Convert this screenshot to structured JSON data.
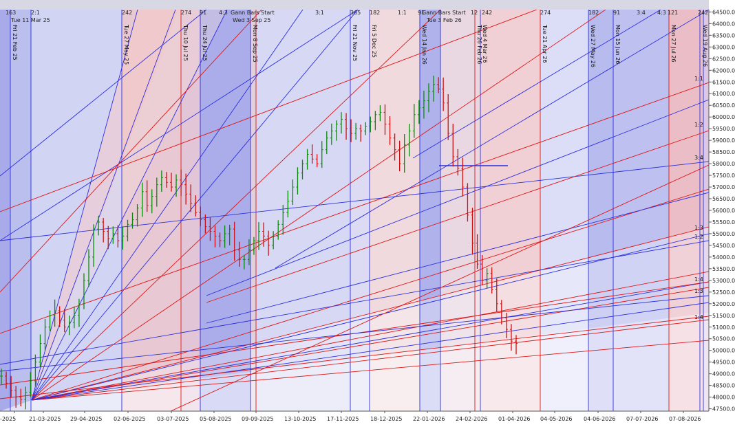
{
  "chart_data": {
    "type": "candlestick",
    "x_tick_labels": [
      "-2025",
      "21-03-2025",
      "29-04-2025",
      "02-06-2025",
      "03-07-2025",
      "05-08-2025",
      "09-09-2025",
      "13-10-2025",
      "17-11-2025",
      "18-12-2025",
      "22-01-2026",
      "24-02-2026",
      "01-04-2026",
      "04-05-2026",
      "04-06-2026",
      "07-07-2026",
      "07-08-2026"
    ],
    "y_tick_labels": [
      "64500.00",
      "64000.00",
      "63500.00",
      "63000.00",
      "62500.00",
      "62000.00",
      "61500.00",
      "61000.00",
      "60500.00",
      "60000.00",
      "59500.00",
      "59000.00",
      "58500.00",
      "58000.00",
      "57500.00",
      "57000.00",
      "56500.00",
      "56000.00",
      "55500.00",
      "55000.00",
      "54500.00",
      "54000.00",
      "53500.00",
      "53000.00",
      "52500.00",
      "52000.00",
      "51500.00",
      "51000.00",
      "50500.00",
      "50000.00",
      "49500.00",
      "49000.00",
      "48500.00",
      "48000.00",
      "47500.00"
    ],
    "ylim": [
      47400,
      64600
    ],
    "top_cycle_labels": [
      "163",
      "2:1",
      "242",
      "274",
      "91",
      "4:3",
      "Gann Bars Start",
      "3:1",
      "365",
      "182",
      "1:1",
      "91",
      "Gann Bars Start",
      "12",
      "242",
      "274",
      "182",
      "91",
      "3:4",
      "4:3",
      "121",
      "242"
    ],
    "gann_start_labels": [
      "Tue 11 Mar 25",
      "Wed 3 Sep 25",
      "Tue 3 Feb 26"
    ],
    "vertical_line_labels": [
      {
        "label": "Fri 21 Feb 25",
        "color": "blue"
      },
      {
        "label": "Tue 27 May 25",
        "color": "blue"
      },
      {
        "label": "Thu 10 Jul 25",
        "color": "red"
      },
      {
        "label": "Thu 24 Jul 25",
        "color": "blue"
      },
      {
        "label": "Mon 8 Sep 25",
        "color": "red"
      },
      {
        "label": "Fri 21 Nov 25",
        "color": "blue"
      },
      {
        "label": "Fri 5 Dec 25",
        "color": "blue"
      },
      {
        "label": "Wed 14 Jan 26",
        "color": "blue"
      },
      {
        "label": "Thu 26 Feb 26",
        "color": "red"
      },
      {
        "label": "Wed 4 Mar 26",
        "color": "blue"
      },
      {
        "label": "Tue 21 Apr 26",
        "color": "red"
      },
      {
        "label": "Wed 27 May 26",
        "color": "blue"
      },
      {
        "label": "Mon 15 Jun 26",
        "color": "blue"
      },
      {
        "label": "Mon 27 Jul 26",
        "color": "red"
      },
      {
        "label": "Wed 19 Aug 26",
        "color": "blue"
      }
    ],
    "gann_angle_labels": [
      "1:1",
      "1:2",
      "3:4",
      "1:3",
      "1:2",
      "1:4",
      "1:3",
      "1:4"
    ],
    "price_series_approx": [
      48900,
      48600,
      48300,
      48000,
      47900,
      48200,
      48700,
      49500,
      50300,
      51000,
      51500,
      51700,
      51300,
      51000,
      51200,
      51500,
      52000,
      53000,
      54000,
      55200,
      55500,
      55100,
      54800,
      55000,
      54700,
      54900,
      55400,
      55600,
      56100,
      56800,
      56200,
      56600,
      57100,
      57400,
      57200,
      57000,
      57300,
      57100,
      56700,
      56300,
      55900,
      55600,
      55300,
      55100,
      54900,
      54700,
      55000,
      55200,
      54300,
      53900,
      53900,
      54300,
      54700,
      55100,
      54900,
      54500,
      54900,
      55400,
      55900,
      56400,
      57000,
      57600,
      58000,
      58400,
      58200,
      58000,
      58600,
      59100,
      59400,
      59700,
      59900,
      59500,
      59300,
      59500,
      59400,
      59600,
      59800,
      60100,
      60200,
      59700,
      59100,
      58600,
      58000,
      58800,
      59400,
      60100,
      60400,
      60700,
      61100,
      61400,
      61200,
      60600,
      59300,
      58300,
      57800,
      57000,
      55800,
      54600,
      53700,
      53000,
      53300,
      52600,
      52000,
      51400,
      50900,
      50400,
      50300
    ]
  }
}
